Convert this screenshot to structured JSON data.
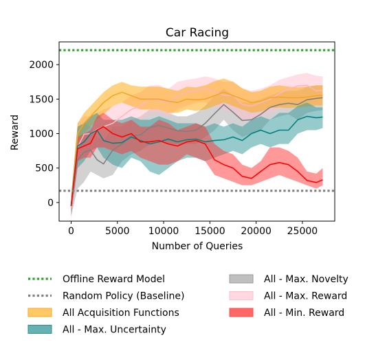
{
  "chart_data": {
    "type": "line",
    "title": "Car Racing",
    "xlabel": "Number of Queries",
    "ylabel": "Reward",
    "xlim": [
      -1300,
      28500
    ],
    "ylim": [
      -270,
      2330
    ],
    "xticks": [
      0,
      5000,
      10000,
      15000,
      20000,
      25000
    ],
    "yticks": [
      0,
      500,
      1000,
      1500,
      2000
    ],
    "xtick_labels": [
      "0",
      "5000",
      "10000",
      "15000",
      "20000",
      "25000"
    ],
    "ytick_labels": [
      "0",
      "500",
      "1000",
      "1500",
      "2000"
    ],
    "grid": false,
    "legend_position": "below",
    "reference_lines": [
      {
        "name": "Offline Reward Model",
        "value": 2210,
        "color": "#2ca02c",
        "style": "dotted"
      },
      {
        "name": "Random Policy (Baseline)",
        "value": 170,
        "color": "#7f7f7f",
        "style": "dotted"
      }
    ],
    "series": [
      {
        "name": "All - Max. Novelty",
        "color": "#7f7f7f",
        "band_color": "#a6a6a6",
        "x": [
          0,
          700,
          1400,
          2100,
          2800,
          3500,
          4500,
          5500,
          6500,
          7500,
          8500,
          9500,
          10500,
          11500,
          12500,
          13500,
          14500,
          15500,
          16500,
          17500,
          18500,
          19500,
          20500,
          21500,
          22500,
          23500,
          24500,
          25500,
          26500,
          27200
        ],
        "y": [
          -60,
          620,
          730,
          760,
          620,
          560,
          760,
          850,
          970,
          980,
          1090,
          1120,
          1080,
          1040,
          1030,
          1050,
          1150,
          1290,
          1420,
          1310,
          1190,
          1200,
          1280,
          1380,
          1420,
          1440,
          1420,
          1490,
          1510,
          1520
        ],
        "lower": [
          -200,
          200,
          300,
          450,
          400,
          350,
          400,
          600,
          700,
          750,
          850,
          900,
          850,
          850,
          850,
          850,
          950,
          1050,
          1200,
          1050,
          950,
          1000,
          1050,
          1200,
          1250,
          1280,
          1200,
          1300,
          1330,
          1340
        ],
        "upper": [
          100,
          1100,
          1150,
          1100,
          950,
          900,
          1100,
          1100,
          1200,
          1250,
          1350,
          1350,
          1300,
          1250,
          1250,
          1300,
          1400,
          1550,
          1650,
          1550,
          1450,
          1450,
          1500,
          1550,
          1600,
          1620,
          1620,
          1680,
          1700,
          1700
        ]
      },
      {
        "name": "All - Max. Reward",
        "color": "#ffb6c1",
        "band_color": "#ffc0cb",
        "x": [
          0,
          700,
          1400,
          2100,
          2800,
          3500,
          4500,
          5500,
          6500,
          7500,
          8500,
          9500,
          10500,
          11500,
          12500,
          13500,
          14500,
          15500,
          16500,
          17500,
          18500,
          19500,
          20500,
          21500,
          22500,
          23500,
          24500,
          25500,
          26500,
          27200
        ],
        "y": [
          -80,
          800,
          990,
          1000,
          1060,
          1100,
          1150,
          1250,
          1350,
          1400,
          1500,
          1480,
          1450,
          1550,
          1600,
          1620,
          1660,
          1600,
          1560,
          1550,
          1420,
          1400,
          1450,
          1500,
          1580,
          1650,
          1690,
          1700,
          1620,
          1630
        ],
        "lower": [
          -250,
          400,
          700,
          700,
          800,
          850,
          900,
          1000,
          1150,
          1200,
          1300,
          1300,
          1250,
          1350,
          1400,
          1450,
          1450,
          1400,
          1350,
          1300,
          1200,
          1200,
          1250,
          1300,
          1350,
          1400,
          1450,
          1450,
          1400,
          1420
        ],
        "upper": [
          100,
          1150,
          1250,
          1250,
          1300,
          1350,
          1400,
          1450,
          1550,
          1600,
          1700,
          1700,
          1650,
          1750,
          1780,
          1800,
          1830,
          1800,
          1750,
          1760,
          1650,
          1620,
          1650,
          1700,
          1780,
          1820,
          1860,
          1880,
          1840,
          1830
        ]
      },
      {
        "name": "All Acquisition Functions",
        "color": "#f5a623",
        "band_color": "#ffa500",
        "x": [
          0,
          700,
          1400,
          2100,
          2800,
          3500,
          4500,
          5500,
          6500,
          7500,
          8500,
          9500,
          10500,
          11500,
          12500,
          13500,
          14500,
          15500,
          16500,
          17500,
          18500,
          19500,
          20500,
          21500,
          22500,
          23500,
          24500,
          25500,
          26500,
          27200
        ],
        "y": [
          -50,
          1000,
          1150,
          1250,
          1350,
          1450,
          1550,
          1600,
          1550,
          1500,
          1500,
          1500,
          1470,
          1450,
          1500,
          1490,
          1500,
          1550,
          1600,
          1550,
          1500,
          1450,
          1470,
          1520,
          1530,
          1520,
          1520,
          1530,
          1550,
          1550
        ],
        "lower": [
          -150,
          850,
          1000,
          1100,
          1200,
          1280,
          1400,
          1450,
          1400,
          1350,
          1350,
          1350,
          1300,
          1300,
          1350,
          1330,
          1350,
          1400,
          1450,
          1400,
          1350,
          1300,
          1320,
          1370,
          1380,
          1370,
          1380,
          1390,
          1410,
          1410
        ],
        "upper": [
          50,
          1150,
          1300,
          1400,
          1500,
          1600,
          1700,
          1750,
          1700,
          1680,
          1680,
          1680,
          1650,
          1620,
          1680,
          1670,
          1700,
          1760,
          1800,
          1750,
          1660,
          1600,
          1620,
          1680,
          1700,
          1680,
          1670,
          1680,
          1700,
          1700
        ]
      },
      {
        "name": "All - Max. Uncertainty",
        "color": "#008080",
        "band_color": "#2f9595",
        "x": [
          0,
          700,
          1400,
          2100,
          2800,
          3500,
          4500,
          5500,
          6500,
          7500,
          8500,
          9500,
          10500,
          11500,
          12500,
          13500,
          14500,
          15500,
          16500,
          17500,
          18500,
          19500,
          20500,
          21500,
          22500,
          23500,
          24500,
          25500,
          26500,
          27200
        ],
        "y": [
          -50,
          820,
          880,
          1000,
          1050,
          900,
          860,
          870,
          950,
          900,
          850,
          880,
          920,
          880,
          910,
          920,
          880,
          900,
          910,
          950,
          900,
          1000,
          1050,
          1000,
          1050,
          1050,
          1200,
          1250,
          1230,
          1240
        ],
        "lower": [
          -200,
          500,
          600,
          750,
          800,
          650,
          550,
          500,
          650,
          600,
          450,
          400,
          500,
          600,
          650,
          650,
          600,
          650,
          700,
          750,
          700,
          800,
          850,
          800,
          850,
          850,
          1000,
          1050,
          1050,
          1080
        ],
        "upper": [
          100,
          1100,
          1150,
          1250,
          1300,
          1200,
          1200,
          1200,
          1250,
          1200,
          1200,
          1250,
          1200,
          1150,
          1150,
          1150,
          1100,
          1150,
          1100,
          1150,
          1100,
          1200,
          1250,
          1200,
          1300,
          1300,
          1400,
          1450,
          1380,
          1380
        ]
      },
      {
        "name": "All - Min. Reward",
        "color": "#ff0000",
        "band_color": "#ff3333",
        "x": [
          0,
          700,
          1400,
          2100,
          2800,
          3500,
          4500,
          5500,
          6500,
          7500,
          8500,
          9500,
          10500,
          11500,
          12500,
          13500,
          14500,
          15500,
          16500,
          17500,
          18500,
          19500,
          20500,
          21500,
          22500,
          23500,
          24500,
          25500,
          26500,
          27200
        ],
        "y": [
          -50,
          780,
          820,
          860,
          1050,
          1100,
          1000,
          950,
          1000,
          880,
          880,
          900,
          850,
          820,
          880,
          900,
          850,
          620,
          550,
          500,
          380,
          350,
          450,
          550,
          580,
          550,
          450,
          320,
          290,
          330
        ],
        "lower": [
          -150,
          600,
          650,
          650,
          800,
          800,
          750,
          700,
          750,
          650,
          600,
          550,
          550,
          600,
          700,
          650,
          600,
          400,
          350,
          300,
          250,
          250,
          300,
          350,
          400,
          350,
          300,
          250,
          200,
          250
        ],
        "upper": [
          50,
          950,
          1000,
          1050,
          1250,
          1300,
          1200,
          1150,
          1200,
          1100,
          1100,
          1200,
          1150,
          1050,
          1100,
          1150,
          1100,
          850,
          750,
          700,
          550,
          500,
          600,
          800,
          800,
          750,
          650,
          450,
          420,
          500
        ]
      }
    ]
  },
  "legend": {
    "left": [
      {
        "label": "Offline Reward Model",
        "kind": "line",
        "color": "#2ca02c"
      },
      {
        "label": "Random Policy (Baseline)",
        "kind": "line",
        "color": "#7f7f7f"
      },
      {
        "label": "All Acquisition Functions",
        "kind": "patch",
        "color": "#f5a623",
        "fill": "#ffc966"
      },
      {
        "label": "All - Max. Uncertainty",
        "kind": "patch",
        "color": "#2f8f8f",
        "fill": "#66b2b2"
      }
    ],
    "right": [
      {
        "label": "All - Max. Novelty",
        "kind": "patch",
        "color": "#999999",
        "fill": "#bfbfbf"
      },
      {
        "label": "All - Max. Reward",
        "kind": "patch",
        "color": "#ffc0cb",
        "fill": "#ffd9df"
      },
      {
        "label": "All - Min. Reward",
        "kind": "patch",
        "color": "#ff4d4d",
        "fill": "#ff6666"
      }
    ]
  }
}
